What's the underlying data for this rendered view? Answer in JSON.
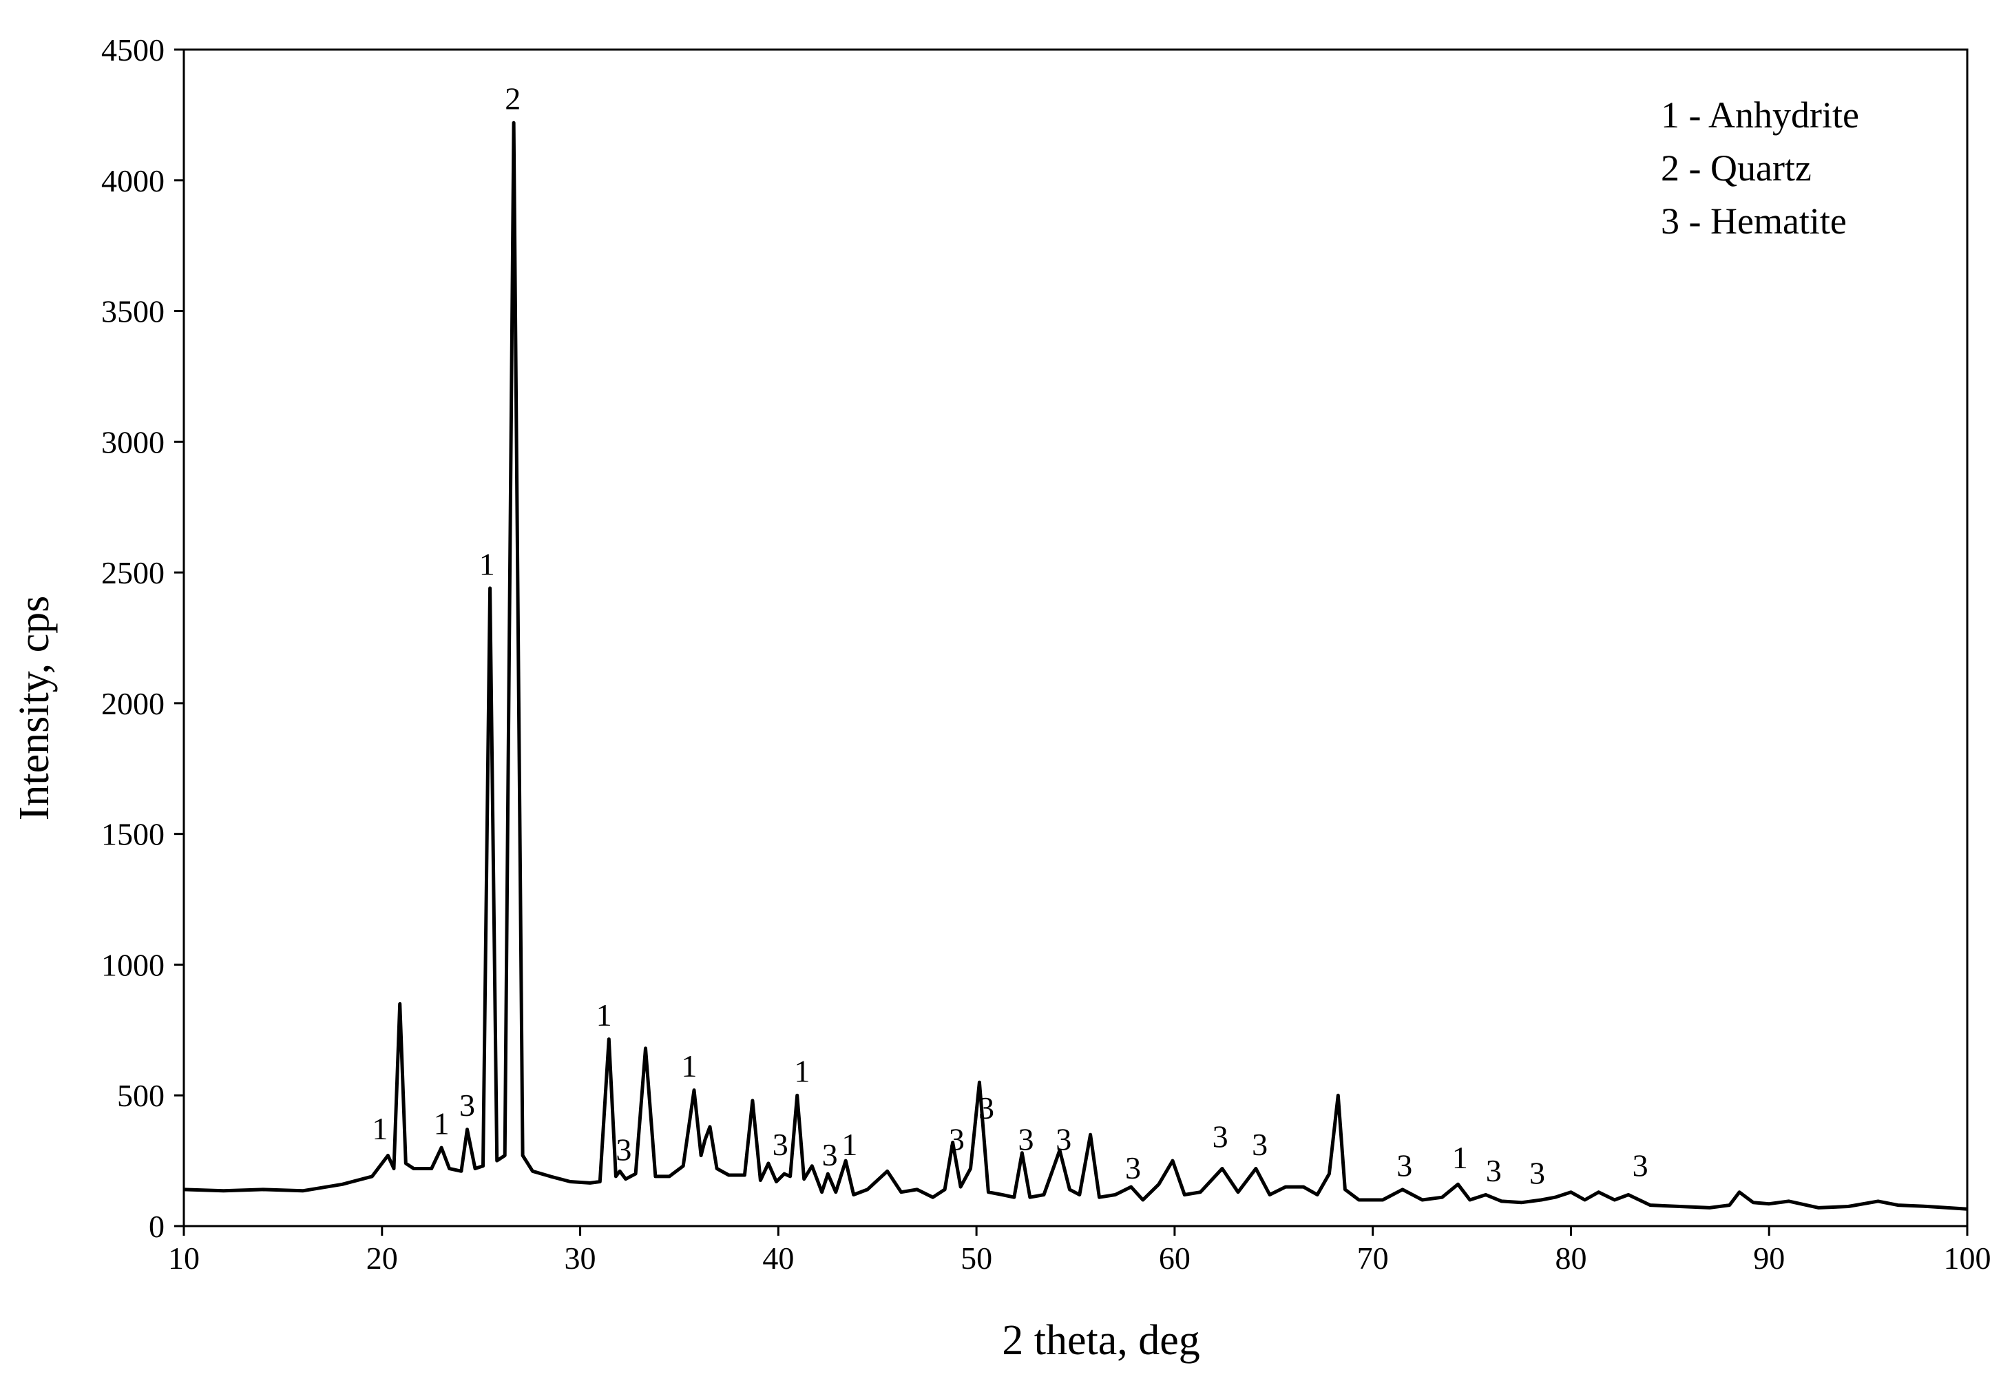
{
  "chart_data": {
    "type": "line",
    "title": "",
    "xlabel": "2 theta, deg",
    "ylabel": "Intensity, cps",
    "xlim": [
      10,
      100
    ],
    "ylim": [
      0,
      4500
    ],
    "x_ticks": [
      "10",
      "20",
      "30",
      "40",
      "50",
      "60",
      "70",
      "80",
      "90",
      "100"
    ],
    "y_ticks": [
      "0",
      "500",
      "1000",
      "1500",
      "2000",
      "2500",
      "3000",
      "3500",
      "4000",
      "4500"
    ],
    "grid": false,
    "legend_position": "top-right",
    "legend": [
      "1 - Anhydrite",
      "2 - Quartz",
      "3 - Hematite"
    ],
    "series": [
      {
        "x": [
          10,
          12,
          14,
          16,
          18,
          19.5,
          20.3,
          20.6,
          20.9,
          21.2,
          21.6,
          22.5,
          23.0,
          23.4,
          24.0,
          24.3,
          24.7,
          25.1,
          25.45,
          25.8,
          26.2,
          26.65,
          27.1,
          27.6,
          28.5,
          29.5,
          30.5,
          31.0,
          31.45,
          31.8,
          32.0,
          32.3,
          32.8,
          33.3,
          33.8,
          34.5,
          35.2,
          35.75,
          36.1,
          36.3,
          36.55,
          36.9,
          37.5,
          38.3,
          38.7,
          39.1,
          39.5,
          39.9,
          40.3,
          40.6,
          40.95,
          41.3,
          41.7,
          42.2,
          42.5,
          42.9,
          43.4,
          43.8,
          44.5,
          45.5,
          46.2,
          47.0,
          47.8,
          48.4,
          48.8,
          49.2,
          49.7,
          50.15,
          50.6,
          51.3,
          51.9,
          52.3,
          52.7,
          53.4,
          54.2,
          54.7,
          55.2,
          55.75,
          56.2,
          57.0,
          57.8,
          58.4,
          59.2,
          59.9,
          60.5,
          61.3,
          62.4,
          63.2,
          64.1,
          64.8,
          65.6,
          66.5,
          67.2,
          67.8,
          68.25,
          68.6,
          69.3,
          70.5,
          71.5,
          72.5,
          73.5,
          74.3,
          74.9,
          75.7,
          76.5,
          77.5,
          78.5,
          79.2,
          80.0,
          80.7,
          81.4,
          82.2,
          82.9,
          84.0,
          85.5,
          87.0,
          88.0,
          88.5,
          89.2,
          90.0,
          91.0,
          92.5,
          94.0,
          95.5,
          96.5,
          98.0,
          100.0
        ],
        "y": [
          140,
          135,
          140,
          135,
          160,
          190,
          270,
          220,
          850,
          240,
          220,
          220,
          300,
          220,
          210,
          370,
          220,
          230,
          2440,
          250,
          270,
          4220,
          270,
          210,
          190,
          170,
          165,
          170,
          715,
          190,
          210,
          180,
          200,
          680,
          190,
          190,
          230,
          520,
          270,
          330,
          380,
          220,
          195,
          195,
          480,
          175,
          240,
          170,
          200,
          190,
          500,
          180,
          230,
          130,
          200,
          130,
          250,
          120,
          140,
          210,
          130,
          140,
          110,
          140,
          320,
          150,
          220,
          550,
          130,
          120,
          110,
          280,
          110,
          120,
          290,
          140,
          120,
          350,
          110,
          120,
          150,
          100,
          160,
          250,
          120,
          130,
          220,
          130,
          220,
          120,
          150,
          150,
          120,
          200,
          500,
          140,
          100,
          100,
          140,
          100,
          110,
          160,
          100,
          120,
          95,
          90,
          100,
          110,
          130,
          100,
          130,
          100,
          120,
          80,
          75,
          70,
          80,
          130,
          90,
          85,
          95,
          70,
          75,
          95,
          80,
          75,
          65
        ]
      }
    ],
    "peak_labels": [
      {
        "x": 19.9,
        "y": 300,
        "text": "1"
      },
      {
        "x": 23.0,
        "y": 320,
        "text": "1"
      },
      {
        "x": 24.3,
        "y": 390,
        "text": "3"
      },
      {
        "x": 25.3,
        "y": 2460,
        "text": "1"
      },
      {
        "x": 26.6,
        "y": 4240,
        "text": "2"
      },
      {
        "x": 31.2,
        "y": 735,
        "text": "1"
      },
      {
        "x": 32.2,
        "y": 220,
        "text": "3"
      },
      {
        "x": 35.5,
        "y": 540,
        "text": "1"
      },
      {
        "x": 40.1,
        "y": 240,
        "text": "3"
      },
      {
        "x": 41.2,
        "y": 520,
        "text": "1"
      },
      {
        "x": 42.6,
        "y": 200,
        "text": "3"
      },
      {
        "x": 43.6,
        "y": 240,
        "text": "1"
      },
      {
        "x": 49.0,
        "y": 260,
        "text": "3"
      },
      {
        "x": 50.5,
        "y": 380,
        "text": "3"
      },
      {
        "x": 52.5,
        "y": 260,
        "text": "3"
      },
      {
        "x": 54.4,
        "y": 260,
        "text": "3"
      },
      {
        "x": 57.9,
        "y": 150,
        "text": "3"
      },
      {
        "x": 62.3,
        "y": 270,
        "text": "3"
      },
      {
        "x": 64.3,
        "y": 240,
        "text": "3"
      },
      {
        "x": 71.6,
        "y": 160,
        "text": "3"
      },
      {
        "x": 74.4,
        "y": 190,
        "text": "1"
      },
      {
        "x": 76.1,
        "y": 140,
        "text": "3"
      },
      {
        "x": 78.3,
        "y": 130,
        "text": "3"
      },
      {
        "x": 83.5,
        "y": 160,
        "text": "3"
      }
    ],
    "line_color": "#000000"
  }
}
